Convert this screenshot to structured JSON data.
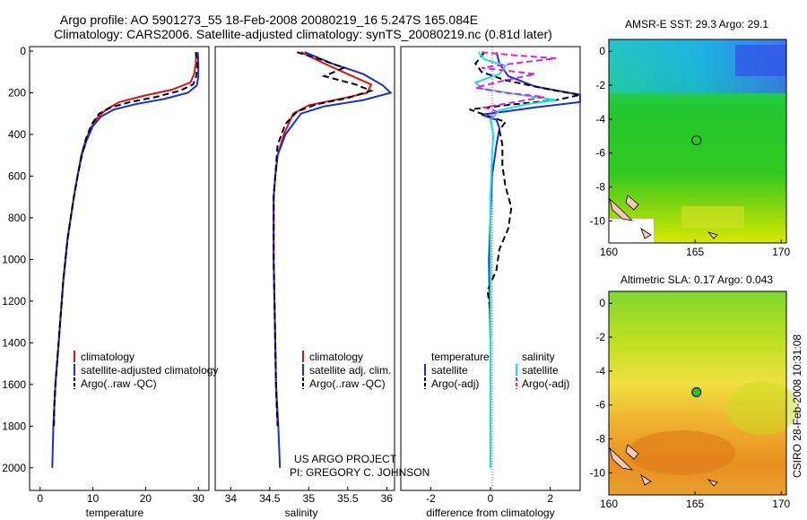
{
  "header": {
    "title_line1": "Argo profile: AO 5901273_55 18-Feb-2008 20080219_16 5.247S 165.084E",
    "title_line2": "Climatology: CARS2006. Satellite-adjusted climatology: synTS_20080219.nc (0.81d later)"
  },
  "credits": {
    "project": "US ARGO PROJECT",
    "pi": "PI: GREGORY C. JOHNSON",
    "stamp": "CSIRO 28-Feb-2008 10:31:08"
  },
  "colors": {
    "climatology": "#e01010",
    "satellite": "#1a2ee0",
    "argo": "#000000",
    "sal_satellite": "#19e0e0",
    "sal_argo": "#e020e0"
  },
  "chart_data": [
    {
      "id": "temperature",
      "type": "line",
      "xlabel": "temperature",
      "ylabel": "",
      "xlim": [
        -2,
        32
      ],
      "ylim": [
        0,
        2100
      ],
      "y_inverted": true,
      "xticks": [
        0,
        10,
        20,
        30
      ],
      "yticks": [
        0,
        200,
        400,
        600,
        800,
        1000,
        1200,
        1400,
        1600,
        1800,
        2000
      ],
      "legend": [
        "climatology",
        "satellite-adjusted climatology",
        "Argo(..raw -QC)"
      ],
      "series": [
        {
          "name": "climatology",
          "color": "#e01010",
          "dash": false,
          "points": [
            [
              29.6,
              5
            ],
            [
              29.5,
              60
            ],
            [
              29.2,
              110
            ],
            [
              28.5,
              150
            ],
            [
              25,
              185
            ],
            [
              19.5,
              215
            ],
            [
              15,
              245
            ],
            [
              12.5,
              280
            ],
            [
              10.8,
              320
            ],
            [
              9.6,
              370
            ],
            [
              8.6,
              430
            ],
            [
              7.8,
              500
            ],
            [
              7.1,
              600
            ],
            [
              6.4,
              700
            ],
            [
              5.8,
              800
            ],
            [
              5.2,
              900
            ],
            [
              4.8,
              1000
            ],
            [
              4.4,
              1100
            ],
            [
              4.1,
              1200
            ],
            [
              3.8,
              1300
            ],
            [
              3.5,
              1400
            ],
            [
              3.2,
              1500
            ],
            [
              2.9,
              1600
            ],
            [
              2.7,
              1700
            ],
            [
              2.6,
              1800
            ]
          ]
        },
        {
          "name": "satellite",
          "color": "#1a2ee0",
          "dash": false,
          "points": [
            [
              29.9,
              5
            ],
            [
              30,
              60
            ],
            [
              30,
              120
            ],
            [
              29.7,
              165
            ],
            [
              28,
              200
            ],
            [
              23.5,
              230
            ],
            [
              18,
              255
            ],
            [
              14,
              280
            ],
            [
              11.5,
              315
            ],
            [
              10,
              360
            ],
            [
              8.8,
              430
            ],
            [
              7.9,
              500
            ],
            [
              7.1,
              600
            ],
            [
              6.4,
              700
            ],
            [
              5.8,
              800
            ],
            [
              5.2,
              900
            ],
            [
              4.8,
              1000
            ],
            [
              4.4,
              1100
            ],
            [
              4.1,
              1200
            ],
            [
              3.8,
              1300
            ],
            [
              3.5,
              1400
            ],
            [
              3.2,
              1500
            ],
            [
              2.9,
              1600
            ],
            [
              2.7,
              1700
            ],
            [
              2.5,
              1800
            ],
            [
              2.4,
              1900
            ],
            [
              2.3,
              2000
            ]
          ]
        },
        {
          "name": "Argo",
          "color": "#000000",
          "dash": true,
          "points": [
            [
              29.5,
              5
            ],
            [
              29.8,
              60
            ],
            [
              29.6,
              120
            ],
            [
              29,
              160
            ],
            [
              26.5,
              190
            ],
            [
              22,
              220
            ],
            [
              17,
              245
            ],
            [
              13.5,
              270
            ],
            [
              11.2,
              300
            ],
            [
              9.8,
              350
            ],
            [
              8.7,
              420
            ],
            [
              7.9,
              500
            ],
            [
              7.1,
              600
            ],
            [
              6.4,
              700
            ],
            [
              5.8,
              800
            ],
            [
              5.2,
              900
            ],
            [
              4.8,
              1000
            ],
            [
              4.4,
              1100
            ],
            [
              4.1,
              1200
            ],
            [
              3.8,
              1300
            ],
            [
              3.5,
              1400
            ],
            [
              3.2,
              1500
            ],
            [
              2.9,
              1600
            ],
            [
              2.7,
              1700
            ],
            [
              2.6,
              1800
            ]
          ]
        }
      ]
    },
    {
      "id": "salinity",
      "type": "line",
      "xlabel": "salinity",
      "ylabel": "",
      "xlim": [
        33.8,
        36.1
      ],
      "ylim": [
        0,
        2100
      ],
      "y_inverted": true,
      "xticks": [
        34,
        34.5,
        35,
        35.5,
        36
      ],
      "yticks": [],
      "legend": [
        "climatology",
        "satellite adj. clim.",
        "Argo(..raw -QC)"
      ],
      "series": [
        {
          "name": "climatology",
          "color": "#e01010",
          "dash": false,
          "points": [
            [
              34.9,
              5
            ],
            [
              35.2,
              60
            ],
            [
              35.5,
              110
            ],
            [
              35.8,
              160
            ],
            [
              35.75,
              200
            ],
            [
              35.4,
              230
            ],
            [
              35,
              260
            ],
            [
              34.8,
              300
            ],
            [
              34.68,
              400
            ],
            [
              34.6,
              500
            ],
            [
              34.57,
              600
            ],
            [
              34.55,
              700
            ],
            [
              34.55,
              800
            ],
            [
              34.55,
              1000
            ],
            [
              34.56,
              1200
            ],
            [
              34.57,
              1400
            ],
            [
              34.58,
              1600
            ],
            [
              34.6,
              1800
            ]
          ]
        },
        {
          "name": "satellite",
          "color": "#1a2ee0",
          "dash": false,
          "points": [
            [
              34.95,
              5
            ],
            [
              35.3,
              60
            ],
            [
              35.7,
              110
            ],
            [
              35.95,
              165
            ],
            [
              36.05,
              200
            ],
            [
              35.7,
              235
            ],
            [
              35.2,
              265
            ],
            [
              34.9,
              300
            ],
            [
              34.7,
              400
            ],
            [
              34.6,
              500
            ],
            [
              34.57,
              600
            ],
            [
              34.55,
              700
            ],
            [
              34.55,
              800
            ],
            [
              34.55,
              1000
            ],
            [
              34.56,
              1200
            ],
            [
              34.57,
              1400
            ],
            [
              34.58,
              1600
            ],
            [
              34.61,
              1800
            ],
            [
              34.63,
              2000
            ]
          ]
        },
        {
          "name": "Argo",
          "color": "#000000",
          "dash": true,
          "points": [
            [
              34.85,
              5
            ],
            [
              35.15,
              40
            ],
            [
              35.45,
              80
            ],
            [
              35.2,
              120
            ],
            [
              35.6,
              160
            ],
            [
              35.8,
              190
            ],
            [
              35.5,
              225
            ],
            [
              35.1,
              255
            ],
            [
              34.85,
              290
            ],
            [
              34.7,
              350
            ],
            [
              34.6,
              450
            ],
            [
              34.57,
              600
            ],
            [
              34.55,
              700
            ],
            [
              34.55,
              800
            ],
            [
              34.55,
              1000
            ],
            [
              34.56,
              1200
            ],
            [
              34.57,
              1400
            ],
            [
              34.58,
              1600
            ],
            [
              34.6,
              1800
            ]
          ]
        }
      ]
    },
    {
      "id": "difference",
      "type": "line",
      "xlabel": "difference from climatology",
      "ylabel": "",
      "xlim": [
        -3,
        3
      ],
      "ylim": [
        0,
        2100
      ],
      "y_inverted": true,
      "xticks": [
        -2,
        0,
        2
      ],
      "yticks": [],
      "legend": [
        "temperature",
        "satellite",
        "Argo(-adj)",
        "salinity",
        "satellite",
        "Argo(-adj)"
      ],
      "series": [
        {
          "name": "temperature satellite",
          "color": "#1a2ee0",
          "dash": false,
          "points": [
            [
              0.2,
              5
            ],
            [
              0.3,
              60
            ],
            [
              0.6,
              120
            ],
            [
              1.5,
              170
            ],
            [
              3,
              210
            ],
            [
              3,
              245
            ],
            [
              1.5,
              270
            ],
            [
              0.5,
              290
            ],
            [
              -0.3,
              305
            ],
            [
              0.2,
              330
            ],
            [
              0.3,
              370
            ],
            [
              0.2,
              450
            ],
            [
              0.05,
              600
            ],
            [
              0,
              800
            ],
            [
              -0.05,
              1000
            ],
            [
              -0.03,
              1200
            ],
            [
              0,
              1400
            ],
            [
              0,
              1600
            ],
            [
              0,
              1800
            ]
          ]
        },
        {
          "name": "temperature Argo(-adj)",
          "color": "#000000",
          "dash": true,
          "points": [
            [
              -0.2,
              5
            ],
            [
              -0.5,
              60
            ],
            [
              -0.3,
              100
            ],
            [
              0.5,
              140
            ],
            [
              2,
              185
            ],
            [
              3,
              210
            ],
            [
              2.2,
              235
            ],
            [
              0.8,
              255
            ],
            [
              -0.7,
              280
            ],
            [
              -0.2,
              305
            ],
            [
              0.5,
              340
            ],
            [
              0.3,
              380
            ],
            [
              0.4,
              450
            ],
            [
              0.4,
              550
            ],
            [
              0.5,
              650
            ],
            [
              0.7,
              750
            ],
            [
              0.6,
              850
            ],
            [
              0.3,
              950
            ],
            [
              0.2,
              1050
            ],
            [
              -0.1,
              1150
            ],
            [
              0,
              1250
            ],
            [
              0,
              1400
            ],
            [
              0,
              1600
            ],
            [
              0,
              1800
            ]
          ]
        },
        {
          "name": "salinity satellite",
          "color": "#19e0e0",
          "dash": false,
          "points": [
            [
              -0.4,
              5
            ],
            [
              -0.2,
              40
            ],
            [
              0.5,
              70
            ],
            [
              0.3,
              110
            ],
            [
              -0.5,
              150
            ],
            [
              -0.3,
              180
            ],
            [
              1,
              210
            ],
            [
              2.2,
              235
            ],
            [
              1.2,
              255
            ],
            [
              0.3,
              285
            ],
            [
              0,
              330
            ],
            [
              0.1,
              400
            ],
            [
              0.05,
              500
            ],
            [
              0,
              700
            ],
            [
              0,
              900
            ],
            [
              0,
              1100
            ],
            [
              0,
              1400
            ],
            [
              0,
              1700
            ],
            [
              0,
              2000
            ]
          ]
        },
        {
          "name": "salinity Argo(-adj)",
          "color": "#e020e0",
          "dash": true,
          "points": [
            [
              -0.3,
              5
            ],
            [
              0.8,
              20
            ],
            [
              2.2,
              35
            ],
            [
              1,
              55
            ],
            [
              -0.3,
              80
            ],
            [
              1.5,
              110
            ],
            [
              0.5,
              140
            ],
            [
              -0.5,
              175
            ],
            [
              0.5,
              200
            ],
            [
              1.8,
              220
            ],
            [
              0.8,
              245
            ],
            [
              -0.2,
              270
            ],
            [
              0.2,
              290
            ],
            [
              0,
              320
            ]
          ]
        }
      ]
    },
    {
      "id": "sst_map",
      "type": "heatmap",
      "title": "AMSR-E SST: 29.3 Argo: 29.1",
      "xlim": [
        160,
        170.3
      ],
      "ylim": [
        -11.3,
        0.7
      ],
      "xticks": [
        160,
        165,
        170
      ],
      "yticks": [
        0,
        -2,
        -4,
        -6,
        -8,
        -10
      ],
      "marker": {
        "lon": 165.084,
        "lat": -5.247
      }
    },
    {
      "id": "sla_map",
      "type": "heatmap",
      "title": "Altimetric SLA: 0.17 Argo: 0.043",
      "xlim": [
        160,
        170.3
      ],
      "ylim": [
        -11.3,
        0.7
      ],
      "xticks": [
        160,
        165,
        170
      ],
      "yticks": [
        0,
        -2,
        -4,
        -6,
        -8,
        -10
      ],
      "marker": {
        "lon": 165.084,
        "lat": -5.247
      }
    }
  ]
}
